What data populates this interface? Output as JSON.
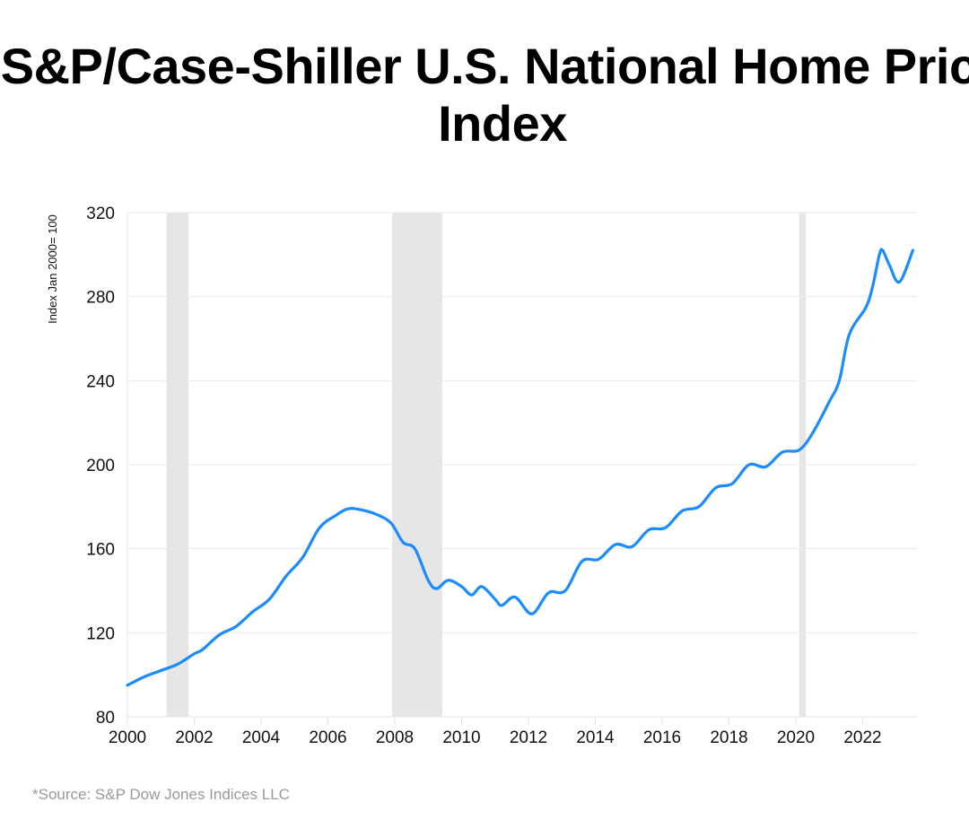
{
  "chart_data": {
    "type": "line",
    "title": "S&P/Case-Shiller U.S. National Home Price Index",
    "xlabel": "",
    "ylabel": "Index Jan 2000= 100",
    "xlim": [
      2000,
      2023.5
    ],
    "ylim": [
      80,
      320
    ],
    "x_ticks": [
      "2000",
      "2002",
      "2004",
      "2006",
      "2008",
      "2010",
      "2012",
      "2014",
      "2016",
      "2018",
      "2020",
      "2022"
    ],
    "y_ticks": [
      "80",
      "120",
      "160",
      "200",
      "240",
      "280",
      "320"
    ],
    "grid": "horizontal",
    "line_color": "#1a8cff",
    "band_color": "#e6e6e6",
    "shaded_periods": [
      [
        2001.17,
        2001.83
      ],
      [
        2007.92,
        2009.42
      ],
      [
        2020.1,
        2020.3
      ]
    ],
    "series": [
      {
        "x": [
          2000.0,
          2000.5,
          2001.0,
          2001.5,
          2002.0,
          2002.25,
          2002.75,
          2003.25,
          2003.75,
          2004.25,
          2004.75,
          2005.25,
          2005.75,
          2006.25,
          2006.6,
          2007.0,
          2007.5,
          2007.9,
          2008.25,
          2008.6,
          2009.0,
          2009.25,
          2009.6,
          2010.0,
          2010.3,
          2010.6,
          2011.0,
          2011.2,
          2011.6,
          2012.1,
          2012.6,
          2013.1,
          2013.6,
          2014.1,
          2014.6,
          2015.1,
          2015.6,
          2016.1,
          2016.6,
          2017.1,
          2017.6,
          2018.1,
          2018.6,
          2019.1,
          2019.6,
          2020.1,
          2020.5,
          2021.0,
          2021.3,
          2021.6,
          2022.1,
          2022.3,
          2022.5,
          2022.6,
          2022.8,
          2023.1,
          2023.5
        ],
        "y": [
          95,
          99,
          102,
          105,
          110,
          112,
          119,
          123,
          130,
          136,
          147,
          156,
          170,
          176,
          179,
          178.5,
          176,
          172,
          163,
          160,
          145,
          141,
          145,
          142,
          138,
          142,
          136,
          133,
          137,
          129,
          139,
          140,
          154,
          155,
          162,
          161,
          169,
          170,
          178,
          180,
          189,
          191,
          200,
          199,
          206,
          207,
          215,
          230,
          240,
          262,
          275,
          285,
          300,
          302,
          295,
          287,
          302
        ]
      }
    ]
  },
  "source": "*Source: S&P Dow Jones Indices LLC"
}
